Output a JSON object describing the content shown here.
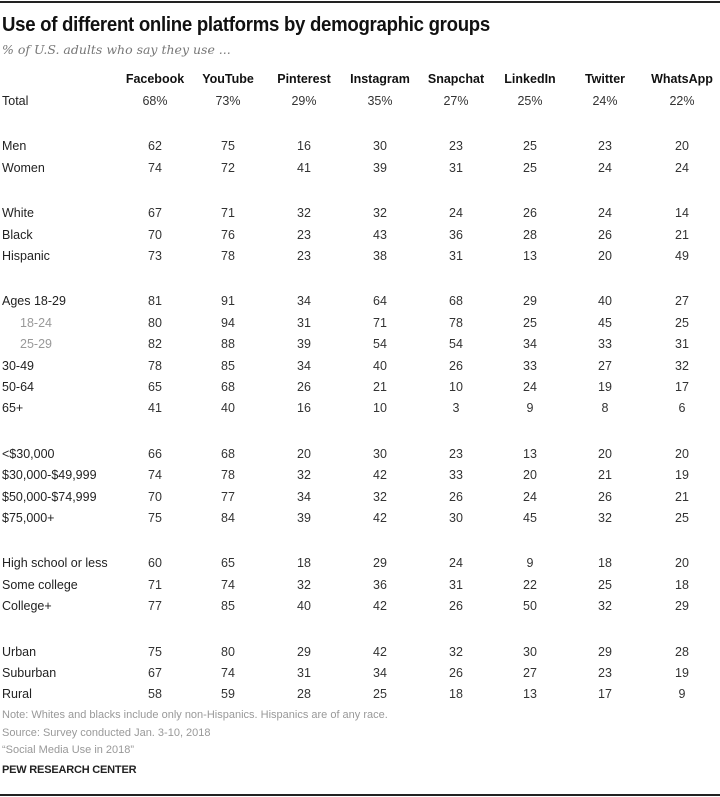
{
  "title": "Use of different online platforms by demographic groups",
  "subtitle": "% of U.S. adults who say they use ...",
  "chart_data": {
    "type": "table",
    "columns": [
      "Facebook",
      "YouTube",
      "Pinterest",
      "Instagram",
      "Snapchat",
      "LinkedIn",
      "Twitter",
      "WhatsApp"
    ],
    "groups": [
      {
        "rows": [
          {
            "label": "Total",
            "values": [
              "68%",
              "73%",
              "29%",
              "35%",
              "27%",
              "25%",
              "24%",
              "22%"
            ]
          }
        ]
      },
      {
        "rows": [
          {
            "label": "Men",
            "values": [
              "62",
              "75",
              "16",
              "30",
              "23",
              "25",
              "23",
              "20"
            ]
          },
          {
            "label": "Women",
            "values": [
              "74",
              "72",
              "41",
              "39",
              "31",
              "25",
              "24",
              "24"
            ]
          }
        ]
      },
      {
        "rows": [
          {
            "label": "White",
            "values": [
              "67",
              "71",
              "32",
              "32",
              "24",
              "26",
              "24",
              "14"
            ]
          },
          {
            "label": "Black",
            "values": [
              "70",
              "76",
              "23",
              "43",
              "36",
              "28",
              "26",
              "21"
            ]
          },
          {
            "label": "Hispanic",
            "values": [
              "73",
              "78",
              "23",
              "38",
              "31",
              "13",
              "20",
              "49"
            ]
          }
        ]
      },
      {
        "rows": [
          {
            "label": "Ages 18-29",
            "values": [
              "81",
              "91",
              "34",
              "64",
              "68",
              "29",
              "40",
              "27"
            ]
          },
          {
            "label": "18-24",
            "sub": true,
            "values": [
              "80",
              "94",
              "31",
              "71",
              "78",
              "25",
              "45",
              "25"
            ]
          },
          {
            "label": "25-29",
            "sub": true,
            "values": [
              "82",
              "88",
              "39",
              "54",
              "54",
              "34",
              "33",
              "31"
            ]
          },
          {
            "label": "30-49",
            "values": [
              "78",
              "85",
              "34",
              "40",
              "26",
              "33",
              "27",
              "32"
            ]
          },
          {
            "label": "50-64",
            "values": [
              "65",
              "68",
              "26",
              "21",
              "10",
              "24",
              "19",
              "17"
            ]
          },
          {
            "label": "65+",
            "values": [
              "41",
              "40",
              "16",
              "10",
              "3",
              "9",
              "8",
              "6"
            ]
          }
        ]
      },
      {
        "rows": [
          {
            "label": "<$30,000",
            "values": [
              "66",
              "68",
              "20",
              "30",
              "23",
              "13",
              "20",
              "20"
            ]
          },
          {
            "label": "$30,000-$49,999",
            "values": [
              "74",
              "78",
              "32",
              "42",
              "33",
              "20",
              "21",
              "19"
            ]
          },
          {
            "label": "$50,000-$74,999",
            "values": [
              "70",
              "77",
              "34",
              "32",
              "26",
              "24",
              "26",
              "21"
            ]
          },
          {
            "label": "$75,000+",
            "values": [
              "75",
              "84",
              "39",
              "42",
              "30",
              "45",
              "32",
              "25"
            ]
          }
        ]
      },
      {
        "rows": [
          {
            "label": "High school or less",
            "values": [
              "60",
              "65",
              "18",
              "29",
              "24",
              "9",
              "18",
              "20"
            ]
          },
          {
            "label": "Some college",
            "values": [
              "71",
              "74",
              "32",
              "36",
              "31",
              "22",
              "25",
              "18"
            ]
          },
          {
            "label": "College+",
            "values": [
              "77",
              "85",
              "40",
              "42",
              "26",
              "50",
              "32",
              "29"
            ]
          }
        ]
      },
      {
        "rows": [
          {
            "label": "Urban",
            "values": [
              "75",
              "80",
              "29",
              "42",
              "32",
              "30",
              "29",
              "28"
            ]
          },
          {
            "label": "Suburban",
            "values": [
              "67",
              "74",
              "31",
              "34",
              "26",
              "27",
              "23",
              "19"
            ]
          },
          {
            "label": "Rural",
            "values": [
              "58",
              "59",
              "28",
              "25",
              "18",
              "13",
              "17",
              "9"
            ]
          }
        ]
      }
    ]
  },
  "notes": [
    "Note: Whites and blacks include only non-Hispanics. Hispanics are of any race.",
    "Source: Survey conducted Jan. 3-10, 2018",
    "“Social Media Use in 2018”"
  ],
  "brand": "PEW RESEARCH CENTER",
  "colors": {
    "text": "#222222",
    "muted": "#999999",
    "rule": "#222222"
  }
}
